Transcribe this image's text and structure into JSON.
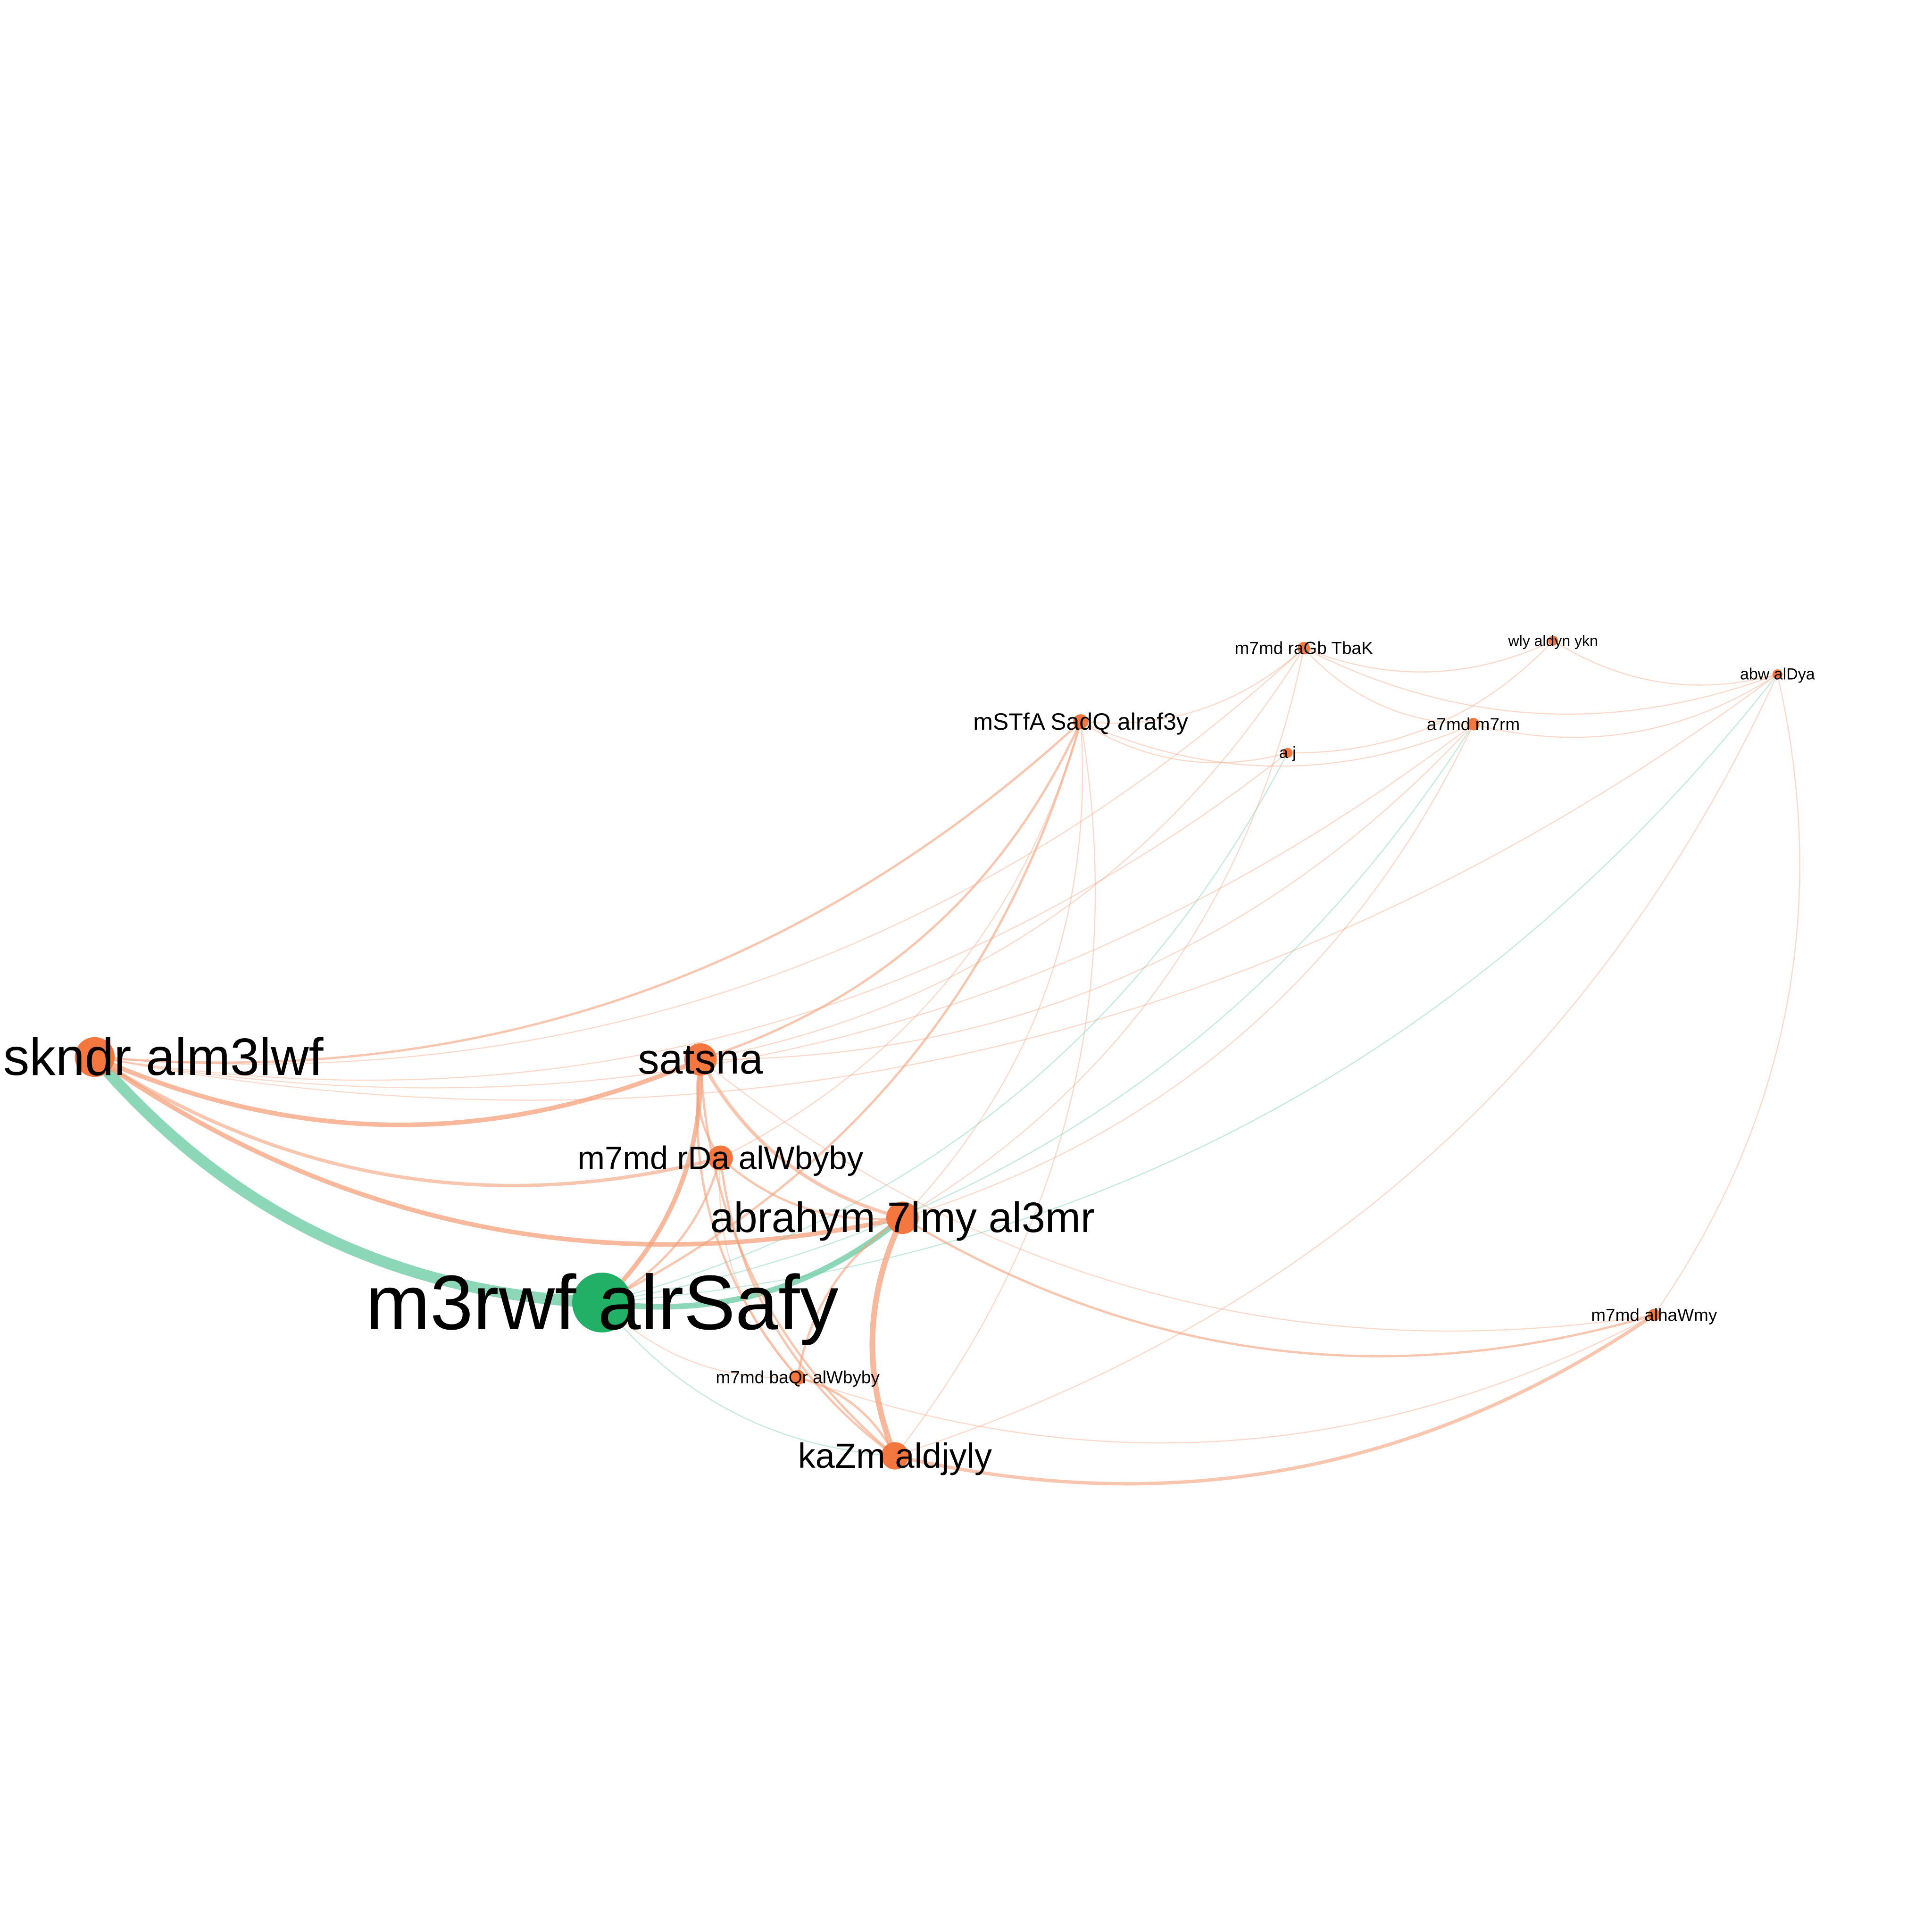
{
  "colors": {
    "background": "#ffffff",
    "node_orange": "#f4773f",
    "node_green": "#22b067",
    "edge_orange": "#f4a07a",
    "edge_green": "#66c9a0"
  },
  "nodes": [
    {
      "id": "iskndr",
      "label": "skndr  alm3lwf",
      "color": "orange",
      "size": "large"
    },
    {
      "id": "m3rwf",
      "label": "m3rwf  alrSafy",
      "color": "green",
      "size": "xlarge"
    },
    {
      "id": "satsna",
      "label": "satsna",
      "color": "orange",
      "size": "medium"
    },
    {
      "id": "rda",
      "label": "m7md  rDa  alWbyby",
      "color": "orange",
      "size": "medium"
    },
    {
      "id": "7lmy",
      "label": "abrahym  7lmy  al3mr",
      "color": "orange",
      "size": "medium"
    },
    {
      "id": "baqr",
      "label": "m7md  baQr  alWbyby",
      "color": "orange",
      "size": "small"
    },
    {
      "id": "kazm",
      "label": "kaZm  aldjyly",
      "color": "orange",
      "size": "medium"
    },
    {
      "id": "sadq",
      "label": "mSTfA  SadQ  alraf3y",
      "color": "orange",
      "size": "small"
    },
    {
      "id": "ragb",
      "label": "m7md  raGb  TbaK",
      "color": "orange",
      "size": "small"
    },
    {
      "id": "wly",
      "label": "wly aldyn   ykn",
      "color": "orange",
      "size": "tiny"
    },
    {
      "id": "dya",
      "label": "abw alDya",
      "color": "orange",
      "size": "tiny"
    },
    {
      "id": "m7rm",
      "label": "a7md  m7rm",
      "color": "orange",
      "size": "small"
    },
    {
      "id": "aj",
      "label": "a  j",
      "color": "orange",
      "size": "tiny"
    },
    {
      "id": "hawmy",
      "label": "m7md  alhaWmy",
      "color": "orange",
      "size": "tiny"
    }
  ],
  "edges": [
    {
      "source": "iskndr",
      "target": "m3rwf",
      "color": "green",
      "weight": 10
    },
    {
      "source": "iskndr",
      "target": "satsna",
      "color": "orange",
      "weight": 4
    },
    {
      "source": "iskndr",
      "target": "7lmy",
      "color": "orange",
      "weight": 4
    },
    {
      "source": "iskndr",
      "target": "rda",
      "color": "orange",
      "weight": 3
    },
    {
      "source": "iskndr",
      "target": "sadq",
      "color": "orange",
      "weight": 2
    },
    {
      "source": "iskndr",
      "target": "m7rm",
      "color": "orange",
      "weight": 1
    },
    {
      "source": "iskndr",
      "target": "ragb",
      "color": "orange",
      "weight": 1
    },
    {
      "source": "iskndr",
      "target": "dya",
      "color": "orange",
      "weight": 1
    },
    {
      "source": "iskndr",
      "target": "aj",
      "color": "orange",
      "weight": 1
    },
    {
      "source": "m3rwf",
      "target": "satsna",
      "color": "orange",
      "weight": 4
    },
    {
      "source": "m3rwf",
      "target": "7lmy",
      "color": "green",
      "weight": 5
    },
    {
      "source": "m3rwf",
      "target": "rda",
      "color": "orange",
      "weight": 2
    },
    {
      "source": "m3rwf",
      "target": "kazm",
      "color": "green",
      "weight": 1
    },
    {
      "source": "m3rwf",
      "target": "baqr",
      "color": "orange",
      "weight": 1
    },
    {
      "source": "m3rwf",
      "target": "sadq",
      "color": "orange",
      "weight": 2
    },
    {
      "source": "m3rwf",
      "target": "m7rm",
      "color": "green",
      "weight": 1
    },
    {
      "source": "m3rwf",
      "target": "dya",
      "color": "green",
      "weight": 1
    },
    {
      "source": "m3rwf",
      "target": "aj",
      "color": "green",
      "weight": 1
    },
    {
      "source": "satsna",
      "target": "7lmy",
      "color": "orange",
      "weight": 3
    },
    {
      "source": "satsna",
      "target": "rda",
      "color": "orange",
      "weight": 2
    },
    {
      "source": "satsna",
      "target": "kazm",
      "color": "orange",
      "weight": 2
    },
    {
      "source": "satsna",
      "target": "baqr",
      "color": "orange",
      "weight": 2
    },
    {
      "source": "satsna",
      "target": "sadq",
      "color": "orange",
      "weight": 2
    },
    {
      "source": "satsna",
      "target": "ragb",
      "color": "orange",
      "weight": 1
    },
    {
      "source": "satsna",
      "target": "m7rm",
      "color": "orange",
      "weight": 1
    },
    {
      "source": "satsna",
      "target": "hawmy",
      "color": "orange",
      "weight": 1
    },
    {
      "source": "rda",
      "target": "7lmy",
      "color": "orange",
      "weight": 2
    },
    {
      "source": "rda",
      "target": "kazm",
      "color": "orange",
      "weight": 2
    },
    {
      "source": "rda",
      "target": "baqr",
      "color": "orange",
      "weight": 1
    },
    {
      "source": "rda",
      "target": "sadq",
      "color": "orange",
      "weight": 1
    },
    {
      "source": "7lmy",
      "target": "kazm",
      "color": "orange",
      "weight": 5
    },
    {
      "source": "7lmy",
      "target": "baqr",
      "color": "orange",
      "weight": 2
    },
    {
      "source": "7lmy",
      "target": "hawmy",
      "color": "orange",
      "weight": 2
    },
    {
      "source": "7lmy",
      "target": "sadq",
      "color": "orange",
      "weight": 1
    },
    {
      "source": "7lmy",
      "target": "ragb",
      "color": "orange",
      "weight": 1
    },
    {
      "source": "7lmy",
      "target": "m7rm",
      "color": "orange",
      "weight": 1
    },
    {
      "source": "kazm",
      "target": "hawmy",
      "color": "orange",
      "weight": 3
    },
    {
      "source": "kazm",
      "target": "baqr",
      "color": "orange",
      "weight": 2
    },
    {
      "source": "kazm",
      "target": "dya",
      "color": "orange",
      "weight": 1
    },
    {
      "source": "kazm",
      "target": "sadq",
      "color": "orange",
      "weight": 1
    },
    {
      "source": "sadq",
      "target": "ragb",
      "color": "orange",
      "weight": 1
    },
    {
      "source": "sadq",
      "target": "aj",
      "color": "orange",
      "weight": 1
    },
    {
      "source": "sadq",
      "target": "m7rm",
      "color": "orange",
      "weight": 1
    },
    {
      "source": "ragb",
      "target": "wly",
      "color": "orange",
      "weight": 1
    },
    {
      "source": "ragb",
      "target": "m7rm",
      "color": "orange",
      "weight": 1
    },
    {
      "source": "ragb",
      "target": "dya",
      "color": "orange",
      "weight": 1
    },
    {
      "source": "wly",
      "target": "dya",
      "color": "orange",
      "weight": 1
    },
    {
      "source": "m7rm",
      "target": "dya",
      "color": "orange",
      "weight": 1
    },
    {
      "source": "aj",
      "target": "wly",
      "color": "orange",
      "weight": 1
    },
    {
      "source": "hawmy",
      "target": "dya",
      "color": "orange",
      "weight": 1
    },
    {
      "source": "baqr",
      "target": "hawmy",
      "color": "orange",
      "weight": 1
    }
  ]
}
